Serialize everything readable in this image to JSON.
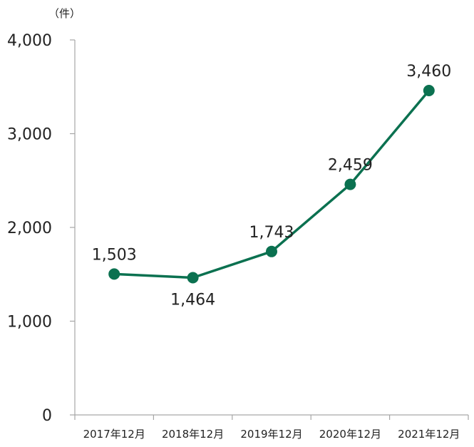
{
  "chart_data": {
    "type": "line",
    "unit_label": "（件）",
    "categories": [
      "2017年12月",
      "2018年12月",
      "2019年12月",
      "2020年12月",
      "2021年12月"
    ],
    "series": [
      {
        "values": [
          1503,
          1464,
          1743,
          2459,
          3460
        ]
      }
    ],
    "data_labels": [
      "1,503",
      "1,464",
      "1,743",
      "2,459",
      "3,460"
    ],
    "label_positions": [
      "above",
      "below",
      "above",
      "above",
      "above"
    ],
    "y_ticks": [
      0,
      1000,
      2000,
      3000,
      4000
    ],
    "y_tick_labels": [
      "0",
      "1,000",
      "2,000",
      "3,000",
      "4,000"
    ],
    "ylim": [
      0,
      4000
    ],
    "grid": false,
    "line_color": "#0b7150",
    "axis_color": "#a6a6a6"
  }
}
